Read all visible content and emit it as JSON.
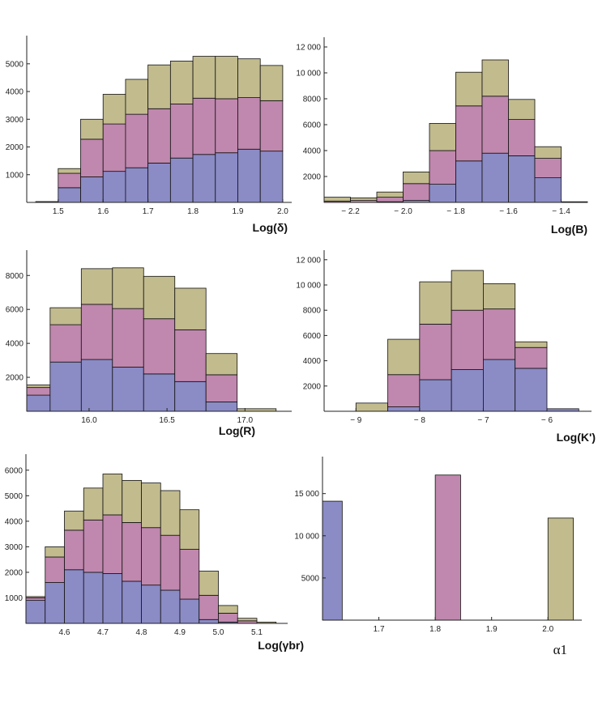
{
  "colors": {
    "blue": "#8b8bc6",
    "pink": "#c088ae",
    "tan": "#c2bb8e"
  },
  "chart_data": [
    {
      "type": "bar",
      "stacked": true,
      "xlabel": "Log(δ)",
      "xlim": [
        1.43,
        2.02
      ],
      "ylim": [
        0,
        5900
      ],
      "xticks": [
        1.5,
        1.6,
        1.7,
        1.8,
        1.9,
        2.0
      ],
      "xtick_labels": [
        "1.5",
        "1.6",
        "1.7",
        "1.8",
        "1.9",
        "2.0"
      ],
      "yticks": [
        1000,
        2000,
        3000,
        4000,
        5000
      ],
      "ytick_labels": [
        "1000",
        "2000",
        "3000",
        "4000",
        "5000"
      ],
      "edges": [
        1.45,
        1.5,
        1.55,
        1.6,
        1.65,
        1.7,
        1.75,
        1.8,
        1.85,
        1.9,
        1.95,
        2.0
      ],
      "series": [
        {
          "values": [
            30,
            530,
            920,
            1120,
            1250,
            1420,
            1600,
            1730,
            1790,
            1920,
            1850
          ]
        },
        {
          "values": [
            0,
            520,
            1360,
            1710,
            1930,
            1960,
            1950,
            2030,
            1950,
            1860,
            1820
          ]
        },
        {
          "values": [
            0,
            170,
            720,
            1070,
            1260,
            1580,
            1550,
            1510,
            1530,
            1400,
            1270
          ]
        }
      ]
    },
    {
      "type": "bar",
      "stacked": true,
      "xlabel": "Log(B)",
      "xlim": [
        -2.3,
        -1.3
      ],
      "ylim": [
        0,
        12500
      ],
      "xticks": [
        -2.2,
        -2.0,
        -1.8,
        -1.6,
        -1.4
      ],
      "xtick_labels": [
        "− 2.2",
        "− 2.0",
        "− 1.8",
        "− 1.6",
        "− 1.4"
      ],
      "yticks": [
        2000,
        4000,
        6000,
        8000,
        10000,
        12000
      ],
      "ytick_labels": [
        "2000",
        "4000",
        "6000",
        "8000",
        "10 000",
        "12 000"
      ],
      "edges": [
        -2.3,
        -2.2,
        -2.1,
        -2.0,
        -1.9,
        -1.8,
        -1.7,
        -1.6,
        -1.5,
        -1.4,
        -1.3
      ],
      "series": [
        {
          "values": [
            0,
            0,
            50,
            150,
            1400,
            3200,
            3800,
            3600,
            1900,
            0
          ]
        },
        {
          "values": [
            100,
            150,
            350,
            1300,
            2600,
            4250,
            4400,
            2800,
            1500,
            0
          ]
        },
        {
          "values": [
            300,
            200,
            400,
            900,
            2100,
            2600,
            2800,
            1550,
            900,
            50
          ]
        }
      ]
    },
    {
      "type": "bar",
      "stacked": true,
      "xlabel": "Log(R)",
      "xlim": [
        15.6,
        17.3
      ],
      "ylim": [
        0,
        9300
      ],
      "xticks": [
        16.0,
        16.5,
        17.0
      ],
      "xtick_labels": [
        "16.0",
        "16.5",
        "17.0"
      ],
      "yticks": [
        2000,
        4000,
        6000,
        8000
      ],
      "ytick_labels": [
        "2000",
        "4000",
        "6000",
        "8000"
      ],
      "edges": [
        15.6,
        15.75,
        15.95,
        16.15,
        16.35,
        16.55,
        16.75,
        16.95,
        17.2
      ],
      "series": [
        {
          "values": [
            950,
            2900,
            3050,
            2600,
            2200,
            1750,
            550,
            0
          ]
        },
        {
          "values": [
            450,
            2200,
            3250,
            3450,
            3250,
            3050,
            1600,
            0
          ]
        },
        {
          "values": [
            150,
            1000,
            2100,
            2400,
            2500,
            2450,
            1250,
            150
          ]
        }
      ]
    },
    {
      "type": "bar",
      "stacked": true,
      "xlabel": "Log(K')",
      "xlim": [
        -9.5,
        -5.3
      ],
      "ylim": [
        0,
        12500
      ],
      "xticks": [
        -9,
        -8,
        -7,
        -6
      ],
      "xtick_labels": [
        "− 9",
        "− 8",
        "− 7",
        "− 6"
      ],
      "yticks": [
        2000,
        4000,
        6000,
        8000,
        10000,
        12000
      ],
      "ytick_labels": [
        "2000",
        "4000",
        "6000",
        "8000",
        "10 000",
        "12 000"
      ],
      "edges": [
        -9.0,
        -8.5,
        -8.0,
        -7.5,
        -7.0,
        -6.5,
        -6.0,
        -5.5
      ],
      "series": [
        {
          "values": [
            0,
            350,
            2500,
            3300,
            4100,
            3400,
            200
          ]
        },
        {
          "values": [
            0,
            2550,
            4400,
            4700,
            4000,
            1650,
            0
          ]
        },
        {
          "values": [
            650,
            2800,
            3350,
            3150,
            2000,
            450,
            0
          ]
        }
      ]
    },
    {
      "type": "bar",
      "stacked": true,
      "xlabel": "Log(γbr)",
      "xlim": [
        4.5,
        5.18
      ],
      "ylim": [
        0,
        6500
      ],
      "xticks": [
        4.6,
        4.7,
        4.8,
        4.9,
        5.0,
        5.1
      ],
      "xtick_labels": [
        "4.6",
        "4.7",
        "4.8",
        "4.9",
        "5.0",
        "5.1"
      ],
      "yticks": [
        1000,
        2000,
        3000,
        4000,
        5000,
        6000
      ],
      "ytick_labels": [
        "1000",
        "2000",
        "3000",
        "4000",
        "5000",
        "6000"
      ],
      "edges": [
        4.5,
        4.55,
        4.6,
        4.65,
        4.7,
        4.75,
        4.8,
        4.85,
        4.9,
        4.95,
        5.0,
        5.05,
        5.1,
        5.15
      ],
      "series": [
        {
          "values": [
            900,
            1600,
            2100,
            2000,
            1950,
            1650,
            1500,
            1300,
            950,
            150,
            50,
            0,
            0
          ]
        },
        {
          "values": [
            100,
            1000,
            1550,
            2050,
            2300,
            2300,
            2250,
            2150,
            1950,
            950,
            350,
            100,
            0
          ]
        },
        {
          "values": [
            50,
            400,
            750,
            1250,
            1600,
            1650,
            1750,
            1750,
            1550,
            950,
            300,
            100,
            50
          ]
        }
      ]
    },
    {
      "type": "bar",
      "xlabel": "α1",
      "xlim": [
        1.6,
        2.06
      ],
      "ylim": [
        0,
        19000
      ],
      "xticks": [
        1.7,
        1.8,
        1.9,
        2.0
      ],
      "xtick_labels": [
        "1.7",
        "1.8",
        "1.9",
        "2.0"
      ],
      "yticks": [
        5000,
        10000,
        15000
      ],
      "ytick_labels": [
        "5000",
        "10 000",
        "15 000"
      ],
      "bars": [
        {
          "x0": 1.6,
          "x1": 1.635,
          "value": 14100,
          "color": "blue"
        },
        {
          "x0": 1.8,
          "x1": 1.845,
          "value": 17200,
          "color": "pink"
        },
        {
          "x0": 2.0,
          "x1": 2.045,
          "value": 12100,
          "color": "tan"
        }
      ]
    }
  ]
}
